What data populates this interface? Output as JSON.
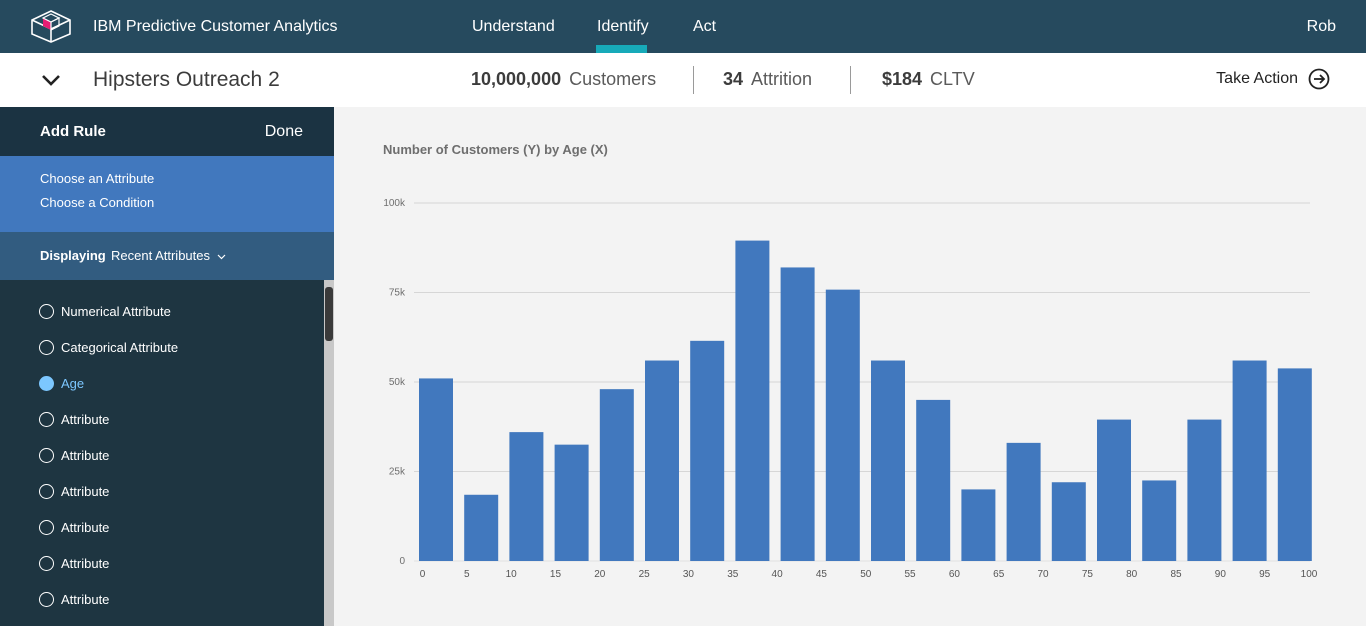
{
  "app": {
    "title": "IBM Predictive Customer Analytics",
    "logo": "cube-logo"
  },
  "nav": {
    "items": [
      "Understand",
      "Identify",
      "Act"
    ],
    "active": "Identify"
  },
  "user": {
    "name": "Rob"
  },
  "segment": {
    "title": "Hipsters Outreach 2",
    "customers_value": "10,000,000",
    "customers_label": "Customers",
    "attrition_value": "34",
    "attrition_label": "Attrition",
    "cltv_value": "$184",
    "cltv_label": "CLTV",
    "action_label": "Take Action"
  },
  "sidebar": {
    "title": "Add Rule",
    "done": "Done",
    "step1": "Choose an Attribute",
    "step2": "Choose a Condition",
    "displaying_label": "Displaying",
    "displaying_value": "Recent Attributes",
    "options": [
      {
        "label": "Numerical Attribute",
        "selected": false
      },
      {
        "label": "Categorical Attribute",
        "selected": false
      },
      {
        "label": "Age",
        "selected": true
      },
      {
        "label": "Attribute",
        "selected": false
      },
      {
        "label": "Attribute",
        "selected": false
      },
      {
        "label": "Attribute",
        "selected": false
      },
      {
        "label": "Attribute",
        "selected": false
      },
      {
        "label": "Attribute",
        "selected": false
      },
      {
        "label": "Attribute",
        "selected": false
      }
    ]
  },
  "colors": {
    "topbar": "#264a5e",
    "accent": "#17aab9",
    "bar": "#4178be",
    "selected": "#7cc7ff"
  },
  "chart_data": {
    "type": "bar",
    "title": "Number of Customers (Y) by Age (X)",
    "xlabel": "Age",
    "ylabel": "Number of Customers",
    "x_ticks": [
      "0",
      "5",
      "10",
      "15",
      "20",
      "25",
      "30",
      "35",
      "40",
      "45",
      "50",
      "55",
      "60",
      "65",
      "70",
      "75",
      "80",
      "85",
      "90",
      "95",
      "100"
    ],
    "y_ticks": [
      "0",
      "25k",
      "50k",
      "75k",
      "100k"
    ],
    "ylim": [
      0,
      100000
    ],
    "grid": true,
    "values": [
      51000,
      18500,
      36000,
      32500,
      48000,
      56000,
      61500,
      89500,
      82000,
      75800,
      56000,
      45000,
      20000,
      33000,
      22000,
      39500,
      22500,
      39500,
      56000,
      53800
    ]
  }
}
